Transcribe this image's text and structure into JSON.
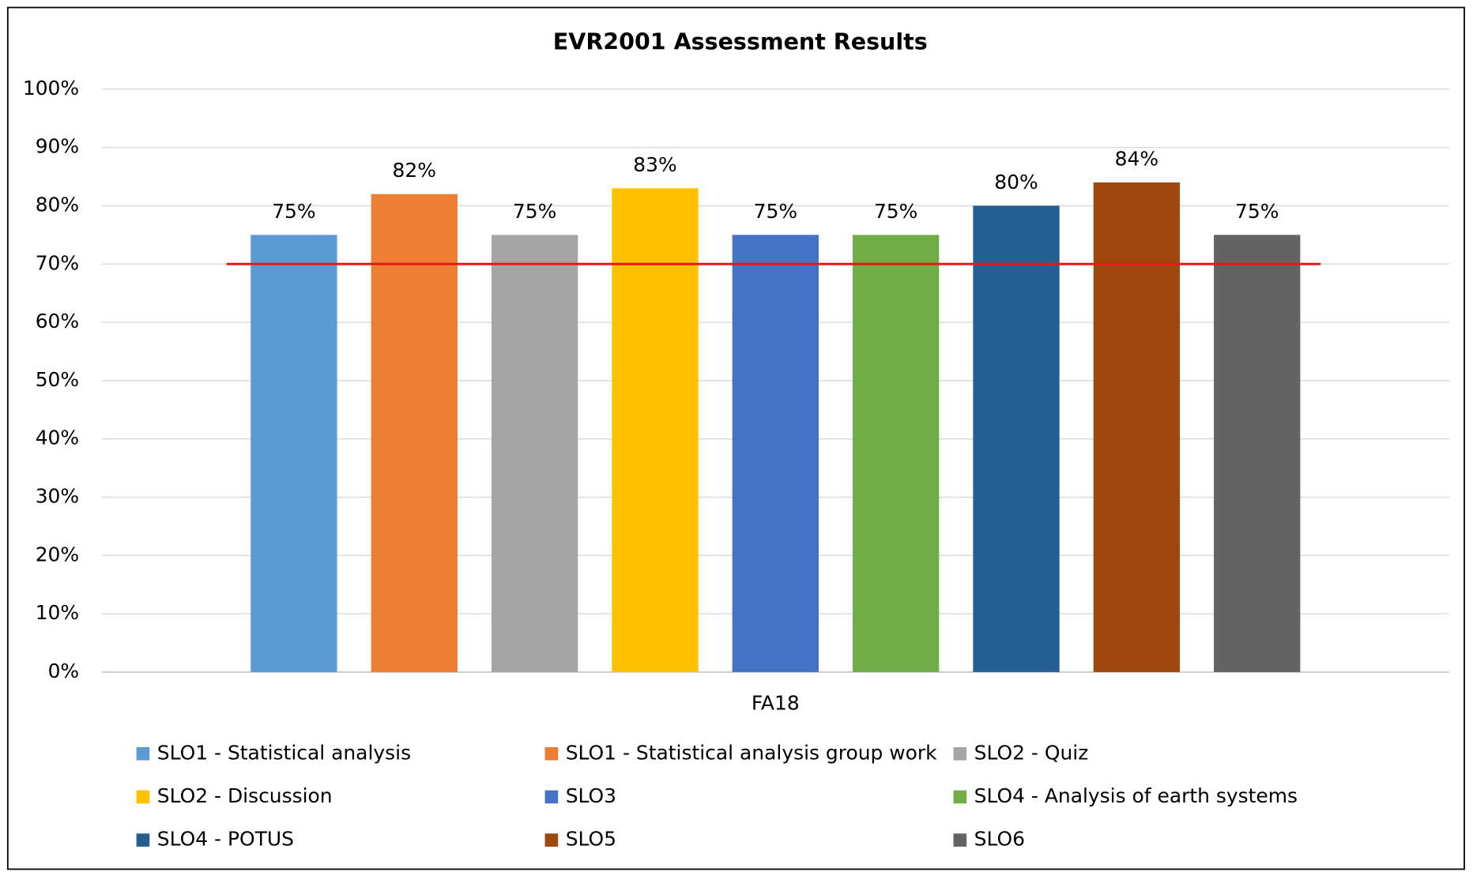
{
  "chart_data": {
    "type": "bar",
    "title": "EVR2001 Assessment Results",
    "categories": [
      "FA18"
    ],
    "series": [
      {
        "name": "SLO1 - Statistical analysis",
        "color": "#5B9BD5",
        "values": [
          75
        ],
        "value_labels": [
          "75%"
        ]
      },
      {
        "name": "SLO1 - Statistical analysis group work",
        "color": "#ED7D31",
        "values": [
          82
        ],
        "value_labels": [
          "82%"
        ]
      },
      {
        "name": "SLO2 - Quiz",
        "color": "#A5A5A5",
        "values": [
          75
        ],
        "value_labels": [
          "75%"
        ]
      },
      {
        "name": "SLO2 - Discussion",
        "color": "#FFC000",
        "values": [
          83
        ],
        "value_labels": [
          "83%"
        ]
      },
      {
        "name": "SLO3",
        "color": "#4472C4",
        "values": [
          75
        ],
        "value_labels": [
          "75%"
        ]
      },
      {
        "name": "SLO4 - Analysis of earth systems",
        "color": "#70AD47",
        "values": [
          75
        ],
        "value_labels": [
          "75%"
        ]
      },
      {
        "name": "SLO4 - POTUS",
        "color": "#255E91",
        "values": [
          80
        ],
        "value_labels": [
          "80%"
        ]
      },
      {
        "name": "SLO5",
        "color": "#9E480E",
        "values": [
          84
        ],
        "value_labels": [
          "84%"
        ]
      },
      {
        "name": "SLO6",
        "color": "#636363",
        "values": [
          75
        ],
        "value_labels": [
          "75%"
        ]
      }
    ],
    "reference_line": {
      "value": 70,
      "color": "#E81818"
    },
    "ylim": [
      0,
      100
    ],
    "yticks": [
      {
        "value": 0,
        "label": "0%"
      },
      {
        "value": 10,
        "label": "10%"
      },
      {
        "value": 20,
        "label": "20%"
      },
      {
        "value": 30,
        "label": "30%"
      },
      {
        "value": 40,
        "label": "40%"
      },
      {
        "value": 50,
        "label": "50%"
      },
      {
        "value": 60,
        "label": "60%"
      },
      {
        "value": 70,
        "label": "70%"
      },
      {
        "value": 80,
        "label": "80%"
      },
      {
        "value": 90,
        "label": "90%"
      },
      {
        "value": 100,
        "label": "100%"
      }
    ],
    "grid": true,
    "legend": "bottom"
  }
}
